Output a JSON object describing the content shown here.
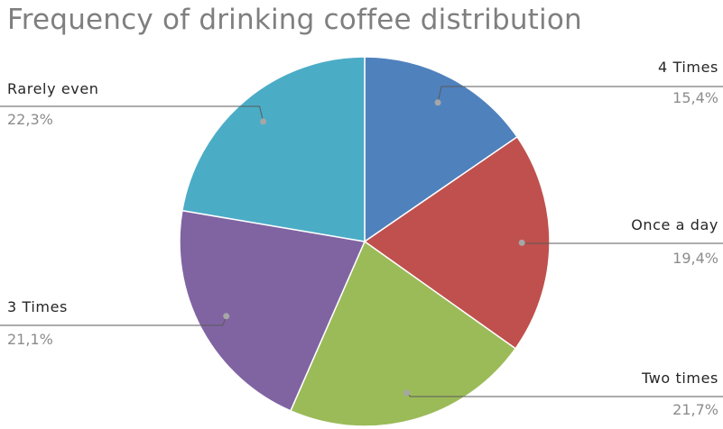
{
  "chart_data": {
    "type": "pie",
    "title": "Frequency of drinking coffee distribution",
    "slices": [
      {
        "label": "4 Times",
        "value": 15.4,
        "display": "15,4%",
        "color": "#4f81bd"
      },
      {
        "label": "Once a day",
        "value": 19.4,
        "display": "19,4%",
        "color": "#c0504d"
      },
      {
        "label": "Two times",
        "value": 21.7,
        "display": "21,7%",
        "color": "#9bbb59"
      },
      {
        "label": "3 Times",
        "value": 21.1,
        "display": "21,1%",
        "color": "#8064a2"
      },
      {
        "label": "Rarely even",
        "value": 22.3,
        "display": "22,3%",
        "color": "#4bacc6"
      }
    ],
    "legend": "none",
    "data_labels": "outside with leader lines"
  }
}
